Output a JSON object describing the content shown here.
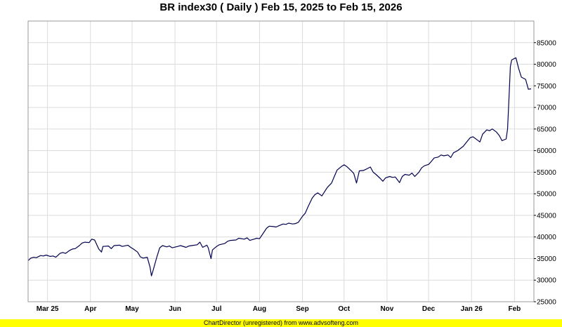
{
  "chart_data": {
    "type": "line",
    "title": "BR index30 ( Daily ) Feb 15, 2025 to Feb 15, 2026",
    "xlabel": "",
    "ylabel": "",
    "ylim": [
      25000,
      90000
    ],
    "y_ticks": [
      25000,
      30000,
      35000,
      40000,
      45000,
      50000,
      55000,
      60000,
      65000,
      70000,
      75000,
      80000,
      85000
    ],
    "y_tick_labels": [
      "25000",
      "30000",
      "35000",
      "40000",
      "45000",
      "50000",
      "55000",
      "60000",
      "65000",
      "70000",
      "75000",
      "80000",
      "85000"
    ],
    "x_range": [
      "2025-02-15",
      "2026-02-15"
    ],
    "x_ticks": [
      {
        "date": "2025-03-01",
        "label": "Mar 25"
      },
      {
        "date": "2025-04-01",
        "label": "Apr"
      },
      {
        "date": "2025-05-01",
        "label": "May"
      },
      {
        "date": "2025-06-01",
        "label": "Jun"
      },
      {
        "date": "2025-07-01",
        "label": "Jul"
      },
      {
        "date": "2025-08-01",
        "label": "Aug"
      },
      {
        "date": "2025-09-01",
        "label": "Sep"
      },
      {
        "date": "2025-10-01",
        "label": "Oct"
      },
      {
        "date": "2025-11-01",
        "label": "Nov"
      },
      {
        "date": "2025-12-01",
        "label": "Dec"
      },
      {
        "date": "2026-01-01",
        "label": "Jan 26"
      },
      {
        "date": "2026-02-01",
        "label": "Feb"
      }
    ],
    "grid": true,
    "line_color": "#000050",
    "series": [
      {
        "points": [
          [
            "2025-02-15",
            34500
          ],
          [
            "2025-02-17",
            35100
          ],
          [
            "2025-02-19",
            35300
          ],
          [
            "2025-02-21",
            35200
          ],
          [
            "2025-02-24",
            35700
          ],
          [
            "2025-02-26",
            35600
          ],
          [
            "2025-02-28",
            35800
          ],
          [
            "2025-03-03",
            35500
          ],
          [
            "2025-03-05",
            35600
          ],
          [
            "2025-03-07",
            35300
          ],
          [
            "2025-03-10",
            36200
          ],
          [
            "2025-03-12",
            36400
          ],
          [
            "2025-03-14",
            36200
          ],
          [
            "2025-03-17",
            36900
          ],
          [
            "2025-03-19",
            37200
          ],
          [
            "2025-03-21",
            37300
          ],
          [
            "2025-03-24",
            38000
          ],
          [
            "2025-03-26",
            38600
          ],
          [
            "2025-03-28",
            38800
          ],
          [
            "2025-03-31",
            38700
          ],
          [
            "2025-04-02",
            39500
          ],
          [
            "2025-04-04",
            39300
          ],
          [
            "2025-04-07",
            37200
          ],
          [
            "2025-04-09",
            36500
          ],
          [
            "2025-04-10",
            37800
          ],
          [
            "2025-04-14",
            37900
          ],
          [
            "2025-04-16",
            37300
          ],
          [
            "2025-04-18",
            38000
          ],
          [
            "2025-04-22",
            38100
          ],
          [
            "2025-04-24",
            37800
          ],
          [
            "2025-04-28",
            38100
          ],
          [
            "2025-04-30",
            37600
          ],
          [
            "2025-05-02",
            37200
          ],
          [
            "2025-05-05",
            36500
          ],
          [
            "2025-05-07",
            35400
          ],
          [
            "2025-05-09",
            35100
          ],
          [
            "2025-05-12",
            35300
          ],
          [
            "2025-05-14",
            33000
          ],
          [
            "2025-05-15",
            31000
          ],
          [
            "2025-05-16",
            32000
          ],
          [
            "2025-05-19",
            35500
          ],
          [
            "2025-05-21",
            37500
          ],
          [
            "2025-05-23",
            38000
          ],
          [
            "2025-05-26",
            37700
          ],
          [
            "2025-05-28",
            37900
          ],
          [
            "2025-05-30",
            37500
          ],
          [
            "2025-06-03",
            37800
          ],
          [
            "2025-06-05",
            38000
          ],
          [
            "2025-06-09",
            37600
          ],
          [
            "2025-06-11",
            37900
          ],
          [
            "2025-06-13",
            38000
          ],
          [
            "2025-06-17",
            38200
          ],
          [
            "2025-06-19",
            38800
          ],
          [
            "2025-06-21",
            37600
          ],
          [
            "2025-06-24",
            38100
          ],
          [
            "2025-06-25",
            37500
          ],
          [
            "2025-06-27",
            35000
          ],
          [
            "2025-06-28",
            37000
          ],
          [
            "2025-07-01",
            37800
          ],
          [
            "2025-07-03",
            38200
          ],
          [
            "2025-07-07",
            38500
          ],
          [
            "2025-07-09",
            39000
          ],
          [
            "2025-07-11",
            39200
          ],
          [
            "2025-07-15",
            39300
          ],
          [
            "2025-07-17",
            39700
          ],
          [
            "2025-07-21",
            39500
          ],
          [
            "2025-07-23",
            39800
          ],
          [
            "2025-07-25",
            39200
          ],
          [
            "2025-07-28",
            39500
          ],
          [
            "2025-07-30",
            39700
          ],
          [
            "2025-08-01",
            39600
          ],
          [
            "2025-08-04",
            41000
          ],
          [
            "2025-08-06",
            42000
          ],
          [
            "2025-08-08",
            42500
          ],
          [
            "2025-08-11",
            42400
          ],
          [
            "2025-08-13",
            42300
          ],
          [
            "2025-08-15",
            42600
          ],
          [
            "2025-08-18",
            43000
          ],
          [
            "2025-08-20",
            42900
          ],
          [
            "2025-08-22",
            43200
          ],
          [
            "2025-08-25",
            43000
          ],
          [
            "2025-08-27",
            43100
          ],
          [
            "2025-08-29",
            43400
          ],
          [
            "2025-09-01",
            44800
          ],
          [
            "2025-09-03",
            45500
          ],
          [
            "2025-09-05",
            47000
          ],
          [
            "2025-09-08",
            49000
          ],
          [
            "2025-09-10",
            49800
          ],
          [
            "2025-09-12",
            50200
          ],
          [
            "2025-09-15",
            49500
          ],
          [
            "2025-09-17",
            50500
          ],
          [
            "2025-09-19",
            51500
          ],
          [
            "2025-09-22",
            52500
          ],
          [
            "2025-09-24",
            54000
          ],
          [
            "2025-09-26",
            55500
          ],
          [
            "2025-09-29",
            56300
          ],
          [
            "2025-10-01",
            56700
          ],
          [
            "2025-10-03",
            56300
          ],
          [
            "2025-10-06",
            55400
          ],
          [
            "2025-10-08",
            54700
          ],
          [
            "2025-10-10",
            52500
          ],
          [
            "2025-10-12",
            55300
          ],
          [
            "2025-10-15",
            55400
          ],
          [
            "2025-10-17",
            55700
          ],
          [
            "2025-10-20",
            56200
          ],
          [
            "2025-10-22",
            55000
          ],
          [
            "2025-10-24",
            54500
          ],
          [
            "2025-10-27",
            53600
          ],
          [
            "2025-10-29",
            52900
          ],
          [
            "2025-10-31",
            53700
          ],
          [
            "2025-11-03",
            54000
          ],
          [
            "2025-11-05",
            53800
          ],
          [
            "2025-11-07",
            53900
          ],
          [
            "2025-11-10",
            52600
          ],
          [
            "2025-11-12",
            54000
          ],
          [
            "2025-11-14",
            54500
          ],
          [
            "2025-11-17",
            54300
          ],
          [
            "2025-11-19",
            54800
          ],
          [
            "2025-11-21",
            54000
          ],
          [
            "2025-11-24",
            55000
          ],
          [
            "2025-11-26",
            56000
          ],
          [
            "2025-11-28",
            56500
          ],
          [
            "2025-12-01",
            56800
          ],
          [
            "2025-12-03",
            57500
          ],
          [
            "2025-12-05",
            58300
          ],
          [
            "2025-12-08",
            58500
          ],
          [
            "2025-12-10",
            59000
          ],
          [
            "2025-12-12",
            58800
          ],
          [
            "2025-12-15",
            59000
          ],
          [
            "2025-12-17",
            58400
          ],
          [
            "2025-12-19",
            59500
          ],
          [
            "2025-12-22",
            60000
          ],
          [
            "2025-12-24",
            60500
          ],
          [
            "2025-12-26",
            61000
          ],
          [
            "2025-12-29",
            62200
          ],
          [
            "2025-12-31",
            63000
          ],
          [
            "2026-01-02",
            63200
          ],
          [
            "2026-01-05",
            62500
          ],
          [
            "2026-01-07",
            62000
          ],
          [
            "2026-01-09",
            63800
          ],
          [
            "2026-01-12",
            64800
          ],
          [
            "2026-01-14",
            64600
          ],
          [
            "2026-01-16",
            65000
          ],
          [
            "2026-01-19",
            64300
          ],
          [
            "2026-01-21",
            63500
          ],
          [
            "2026-01-23",
            62300
          ],
          [
            "2026-01-26",
            62700
          ],
          [
            "2026-01-27",
            65000
          ],
          [
            "2026-01-28",
            72000
          ],
          [
            "2026-01-29",
            79500
          ],
          [
            "2026-01-30",
            81000
          ],
          [
            "2026-02-02",
            81500
          ],
          [
            "2026-02-04",
            79000
          ],
          [
            "2026-02-06",
            77000
          ],
          [
            "2026-02-09",
            76500
          ],
          [
            "2026-02-11",
            74200
          ],
          [
            "2026-02-13",
            74300
          ]
        ]
      }
    ]
  },
  "footer": {
    "text": "ChartDirector (unregistered) from www.advsofteng.com"
  }
}
